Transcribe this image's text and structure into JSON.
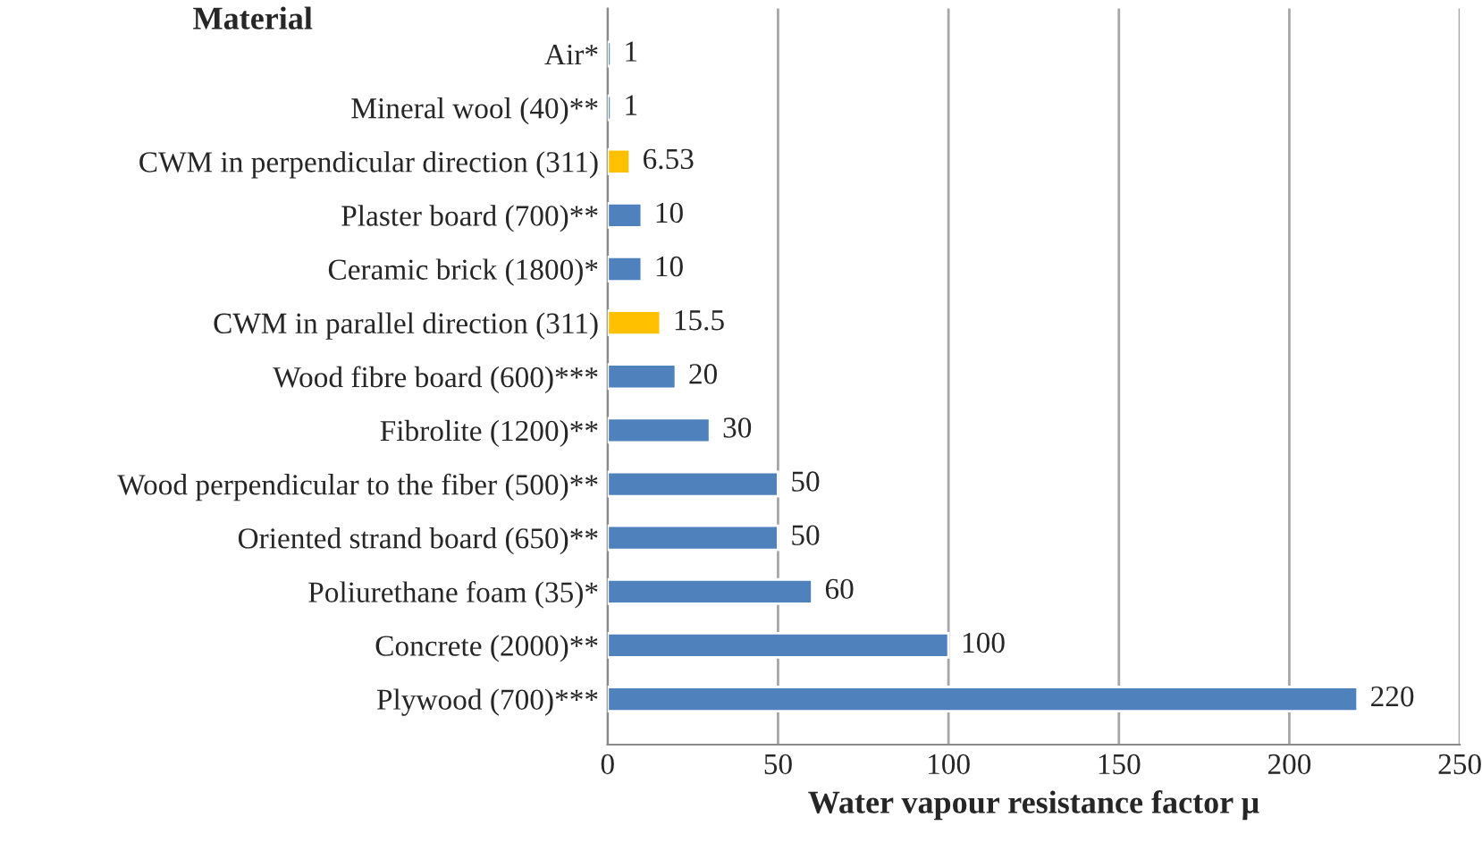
{
  "chart_data": {
    "type": "bar",
    "orientation": "horizontal",
    "ylabel": "Material",
    "xlabel": "Water vapour resistance factor μ",
    "categories": [
      "Air*",
      "Mineral wool (40)**",
      "CWM in perpendicular direction (311)",
      "Plaster board (700)**",
      "Ceramic brick (1800)*",
      "CWM in parallel direction (311)",
      "Wood fibre board (600)***",
      "Fibrolite (1200)**",
      "Wood perpendicular to the fiber (500)**",
      "Oriented strand board (650)**",
      "Poliurethane foam (35)*",
      "Concrete (2000)**",
      "Plywood (700)***"
    ],
    "values": [
      1,
      1,
      6.53,
      10,
      10,
      15.5,
      20,
      30,
      50,
      50,
      60,
      100,
      220
    ],
    "colors": [
      "#4f81bd",
      "#4f81bd",
      "#ffc000",
      "#4f81bd",
      "#4f81bd",
      "#ffc000",
      "#4f81bd",
      "#4f81bd",
      "#4f81bd",
      "#4f81bd",
      "#4f81bd",
      "#4f81bd",
      "#4f81bd"
    ],
    "xlim": [
      0,
      250
    ],
    "xticks": [
      0,
      50,
      100,
      150,
      200,
      250
    ],
    "grid": "x",
    "data_labels": true
  }
}
